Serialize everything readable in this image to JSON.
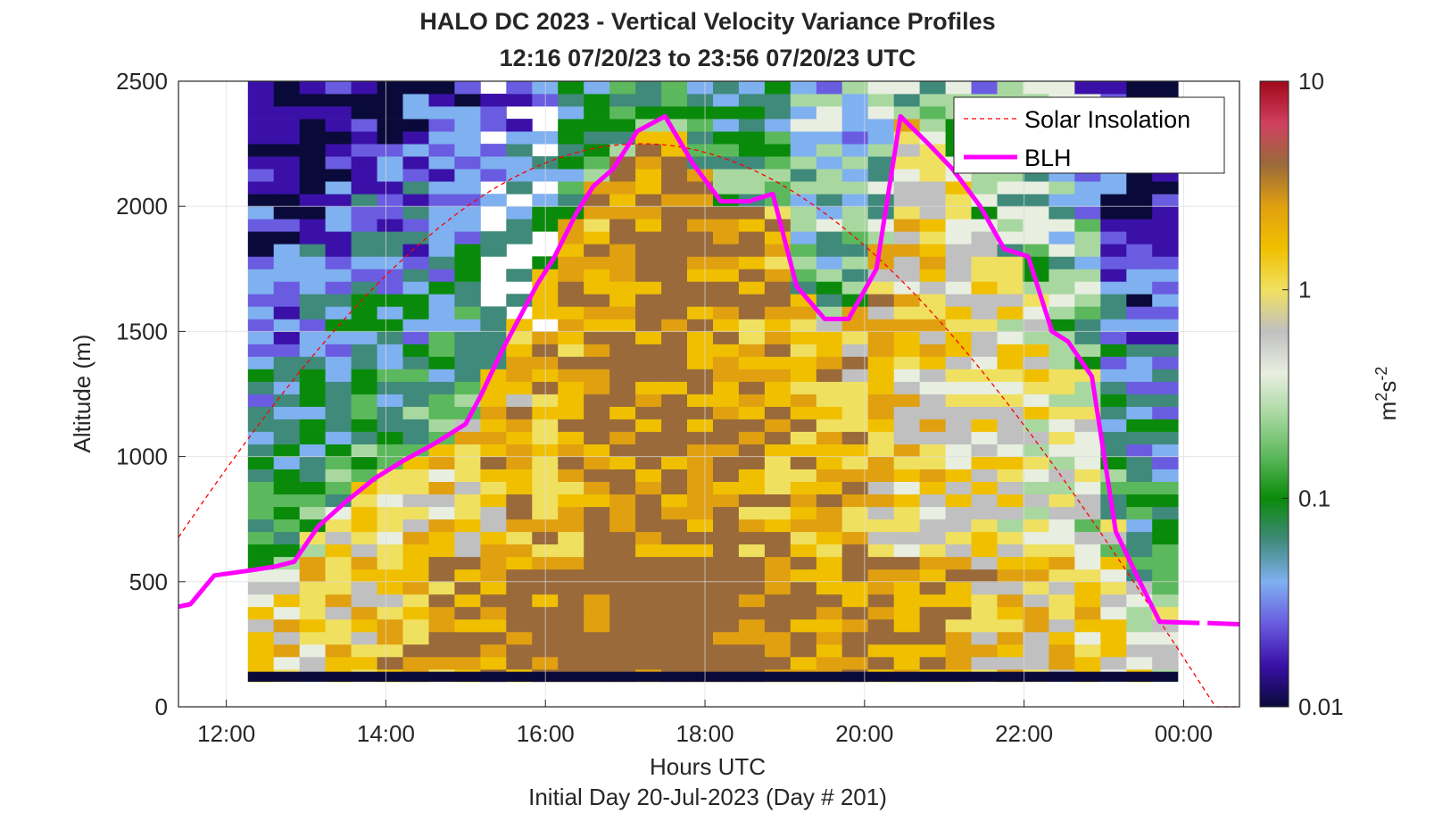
{
  "chart_data": {
    "type": "heatmap",
    "title": "HALO DC 2023 - Vertical Velocity Variance Profiles",
    "subtitle": "12:16 07/20/23 to 23:56 07/20/23  UTC",
    "xlabel": "Hours UTC",
    "xlabel2": "Initial Day 20-Jul-2023 (Day # 201)",
    "ylabel": "Altitude (m)",
    "colorbar_label": "m²s⁻²",
    "colorbar_label_main": "m",
    "colorbar_label_sup1": "2",
    "colorbar_label_mid": "s",
    "colorbar_label_sup2": "-2",
    "xlim": [
      11.4,
      24.7
    ],
    "ylim": [
      0,
      2500
    ],
    "x_ticks": [
      12,
      14,
      16,
      18,
      20,
      22,
      24
    ],
    "x_tick_labels": [
      "12:00",
      "14:00",
      "16:00",
      "18:00",
      "20:00",
      "22:00",
      "00:00"
    ],
    "y_ticks": [
      0,
      500,
      1000,
      1500,
      2000,
      2500
    ],
    "y_tick_labels": [
      "0",
      "500",
      "1000",
      "1500",
      "2000",
      "2500"
    ],
    "colorbar_scale": "log",
    "colorbar_range": [
      0.01,
      10
    ],
    "colorbar_ticks": [
      0.01,
      0.1,
      1,
      10
    ],
    "colorbar_tick_labels": [
      "0.01",
      "0.1",
      "1",
      "10"
    ],
    "colormap": [
      "#0a0a3a",
      "#3a10a8",
      "#6a5ce0",
      "#7fb0f0",
      "#3f8a7a",
      "#0a8a0a",
      "#5cb85c",
      "#a8d8a0",
      "#e8eee0",
      "#c0c0c0",
      "#f0e060",
      "#f0c000",
      "#e0a010",
      "#9a6a3a",
      "#d04060",
      "#a00818"
    ],
    "grid": true,
    "legend_position": "top-right",
    "legend": [
      "Solar Insolation",
      "BLH"
    ],
    "series_colors": {
      "solar": "#ff0000",
      "blh": "#ff00ff"
    },
    "heatmap_time_range": [
      12.27,
      23.93
    ],
    "heatmap_altitude_range": [
      100,
      2500
    ],
    "blh_series": {
      "name": "BLH",
      "x": [
        11.4,
        11.55,
        11.85,
        12.3,
        12.6,
        12.85,
        13.15,
        13.5,
        13.85,
        14.2,
        14.6,
        15.0,
        15.2,
        15.45,
        15.65,
        15.9,
        16.1,
        16.4,
        16.6,
        16.85,
        17.15,
        17.5,
        17.85,
        18.2,
        18.55,
        18.85,
        19.15,
        19.5,
        19.8,
        20.15,
        20.45,
        20.8,
        21.1,
        21.45,
        21.75,
        22.05,
        22.35,
        22.55,
        22.85,
        23.15,
        23.45,
        23.7,
        23.95,
        24.2
      ],
      "y": [
        400,
        410,
        525,
        545,
        560,
        580,
        720,
        820,
        910,
        980,
        1050,
        1130,
        1250,
        1420,
        1540,
        1690,
        1790,
        1980,
        2080,
        2150,
        2300,
        2360,
        2170,
        2020,
        2020,
        2050,
        1680,
        1550,
        1550,
        1750,
        2360,
        2250,
        2150,
        2000,
        1830,
        1800,
        1500,
        1460,
        1320,
        700,
        500,
        340,
        null,
        335
      ],
      "x_tail": [
        24.3,
        24.7
      ],
      "y_tail": [
        335,
        330
      ]
    },
    "solar_series": {
      "name": "Solar Insolation",
      "peak_time": 17.2,
      "half_width_hours": 7.2,
      "max_altitude": 2250
    }
  }
}
